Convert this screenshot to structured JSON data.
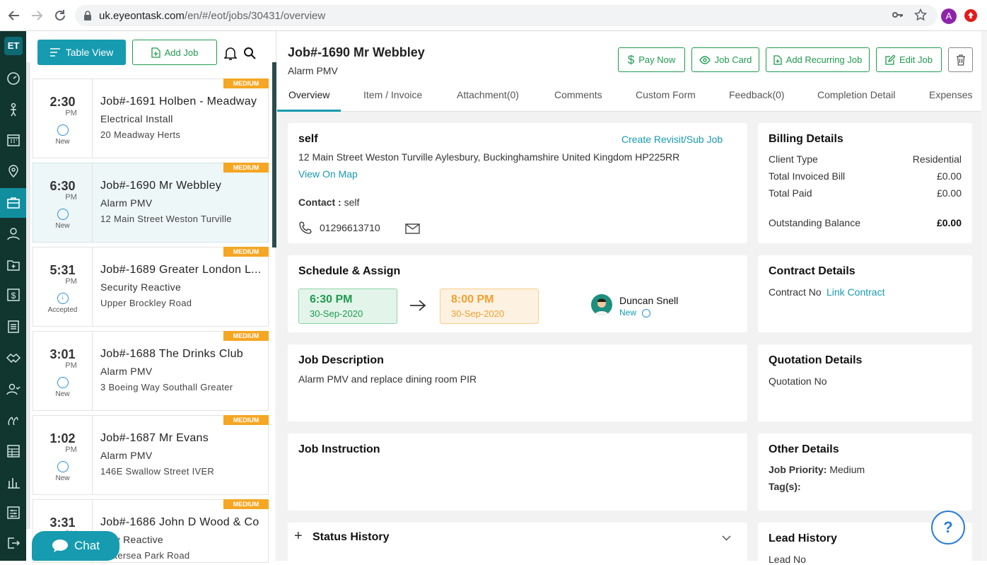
{
  "browser": {
    "url_host": "uk.eyeontask.com",
    "url_path": "/en/#/eot/jobs/30431/overview",
    "profile_initial": "A"
  },
  "sidebar": {
    "logo": "ET",
    "icons": [
      "dashboard-icon",
      "worker-icon",
      "calendar-icon",
      "map-pin-icon",
      "jobs-briefcase-icon",
      "client-icon",
      "folder-icon",
      "dollar-icon",
      "document-icon",
      "handshake-icon",
      "team-icon",
      "leads-icon",
      "table-icon",
      "chart-icon",
      "settings-icon",
      "logout-icon"
    ],
    "active_icon": "jobs-briefcase-icon"
  },
  "joblist": {
    "table_view_label": "Table View",
    "add_job_label": "Add Job",
    "chat_label": "Chat",
    "items": [
      {
        "time": "2:30",
        "ampm": "PM",
        "status": "New",
        "badge": "MEDIUM",
        "title": "Job#-1691 Holben - Meadway",
        "type": "Electrical Install",
        "address": "20 Meadway Herts"
      },
      {
        "time": "6:30",
        "ampm": "PM",
        "status": "New",
        "badge": "MEDIUM",
        "title": "Job#-1690 Mr Webbley",
        "type": "Alarm PMV",
        "address": "12 Main Street Weston Turville"
      },
      {
        "time": "5:31",
        "ampm": "PM",
        "status": "Accepted",
        "badge": "MEDIUM",
        "title": "Job#-1689 Greater London L...",
        "type": "Security Reactive",
        "address": "Upper Brockley Road"
      },
      {
        "time": "3:01",
        "ampm": "PM",
        "status": "New",
        "badge": "MEDIUM",
        "title": "Job#-1688 The Drinks Club",
        "type": "Alarm PMV",
        "address": "3 Boeing Way Southall Greater"
      },
      {
        "time": "1:02",
        "ampm": "PM",
        "status": "New",
        "badge": "MEDIUM",
        "title": "Job#-1687 Mr Evans",
        "type": "Alarm PMV",
        "address": "146E Swallow Street IVER"
      },
      {
        "time": "3:31",
        "ampm": "PM",
        "status": "",
        "badge": "MEDIUM",
        "title": "Job#-1686 John D Wood & Co",
        "type": "urity Reactive",
        "address": "Battersea Park Road"
      }
    ]
  },
  "header": {
    "title": "Job#-1690 Mr Webbley",
    "subtitle": "Alarm PMV",
    "pay_now": "Pay Now",
    "job_card": "Job Card",
    "add_recurring": "Add Recurring Job",
    "edit_job": "Edit Job"
  },
  "tabs": [
    "Overview",
    "Item / Invoice",
    "Attachment(0)",
    "Comments",
    "Custom Form",
    "Feedback(0)",
    "Completion Detail",
    "Expenses"
  ],
  "client": {
    "name": "self",
    "revisit_link": "Create Revisit/Sub Job",
    "address": "12 Main Street Weston Turville Aylesbury, Buckinghamshire United Kingdom HP225RR",
    "map_link": "View On Map",
    "contact_label": "Contact :",
    "contact_value": "self",
    "phone": "01296613710"
  },
  "billing": {
    "title": "Billing Details",
    "client_type_label": "Client Type",
    "client_type": "Residential",
    "invoiced_label": "Total Invoiced Bill",
    "invoiced": "£0.00",
    "paid_label": "Total Paid",
    "paid": "£0.00",
    "outstanding_label": "Outstanding Balance",
    "outstanding": "£0.00"
  },
  "schedule": {
    "title": "Schedule & Assign",
    "start_time": "6:30 PM",
    "start_date": "30-Sep-2020",
    "end_time": "8:00 PM",
    "end_date": "30-Sep-2020",
    "assignee": "Duncan Snell",
    "assignee_status": "New"
  },
  "contract": {
    "title": "Contract Details",
    "label": "Contract No",
    "link": "Link Contract"
  },
  "description": {
    "title": "Job Description",
    "text": "Alarm PMV and replace dining room PIR"
  },
  "quotation": {
    "title": "Quotation Details",
    "label": "Quotation No"
  },
  "instruction": {
    "title": "Job Instruction"
  },
  "other": {
    "title": "Other Details",
    "priority_label": "Job Priority:",
    "priority": "Medium",
    "tags_label": "Tag(s):"
  },
  "status_history": {
    "title": "Status History"
  },
  "lead": {
    "title": "Lead History",
    "label": "Lead No"
  },
  "help": "?",
  "colors": {
    "accent": "#169bb0",
    "green": "#1f9a4f",
    "badge": "#f5a623",
    "sidebar": "#11352f"
  }
}
